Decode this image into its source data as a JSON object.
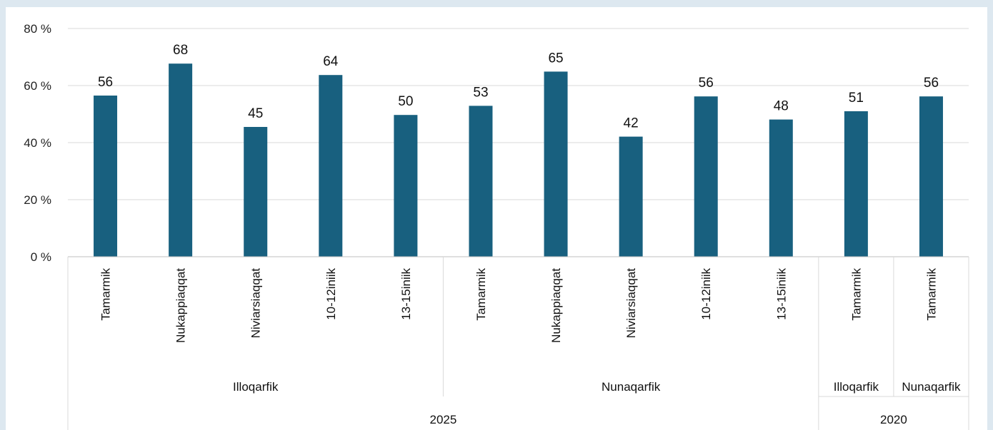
{
  "chart_data": {
    "type": "bar",
    "ylim": [
      0,
      80
    ],
    "yticks": [
      0,
      20,
      40,
      60,
      80
    ],
    "ytick_labels": [
      "0 %",
      "20 %",
      "40 %",
      "60 %",
      "80 %"
    ],
    "grid": true,
    "bar_color": "#18607f",
    "categories": [
      "Tamarmik",
      "Nukappiaqqat",
      "Niviarsiaqqat",
      "10-12iniik",
      "13-15iniik",
      "Tamarmik",
      "Nukappiaqqat",
      "Niviarsiaqqat",
      "10-12iniik",
      "13-15iniik",
      "Tamarmik",
      "Tamarmik"
    ],
    "values": [
      56,
      68,
      45,
      64,
      50,
      53,
      65,
      42,
      56,
      48,
      51,
      56
    ],
    "data_labels": [
      "56",
      "68",
      "45",
      "64",
      "50",
      "53",
      "65",
      "42",
      "56",
      "48",
      "51",
      "56"
    ],
    "bar_heights": [
      56.5,
      67.7,
      45.5,
      63.7,
      49.7,
      52.9,
      64.9,
      42.1,
      56.2,
      48.1,
      51.0,
      56.2
    ],
    "groups_level1": [
      {
        "label": "Illoqarfik",
        "start": 0,
        "end": 4
      },
      {
        "label": "Nunaqarfik",
        "start": 5,
        "end": 9
      },
      {
        "label": "Illoqarfik",
        "start": 10,
        "end": 10
      },
      {
        "label": "Nunaqarfik",
        "start": 11,
        "end": 11
      }
    ],
    "groups_level2": [
      {
        "label": "2025",
        "start": 0,
        "end": 9
      },
      {
        "label": "2020",
        "start": 10,
        "end": 11
      }
    ]
  }
}
